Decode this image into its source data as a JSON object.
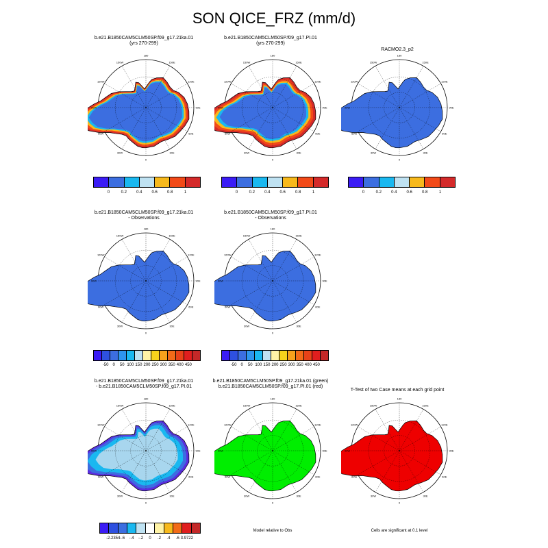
{
  "title": "SON QICE_FRZ (mm/d)",
  "lon_labels": [
    "0",
    "30E",
    "60E",
    "90E",
    "120E",
    "150E",
    "180",
    "150W",
    "120W",
    "90W",
    "60W",
    "30W"
  ],
  "panels": [
    {
      "title_line1": "b.e21.B1850CAM5CLM50SP.f09_g17.21ka.01",
      "title_line2": "(yrs 270-299)",
      "fill_style": "model_a"
    },
    {
      "title_line1": "b.e21.B1850CAM5CLM50SP.f09_g17.PI.01",
      "title_line2": "(yrs 270-299)",
      "fill_style": "model_b"
    },
    {
      "title_line1": "RACMO2.3_p2",
      "title_line2": "",
      "fill_style": "obs"
    },
    {
      "title_line1": "b.e21.B1850CAM5CLM50SP.f09_g17.21ka.01",
      "title_line2": "- Observations",
      "fill_style": "bias"
    },
    {
      "title_line1": "b.e21.B1850CAM5CLM50SP.f09_g17.PI.01",
      "title_line2": "- Observations",
      "fill_style": "bias"
    },
    {
      "title_line1": "b.e21.B1850CAM5CLM50SP.f09_g17.21ka.01",
      "title_line2": "- b.e21.B1850CAM5CLM50SP.f09_g17.PI.01",
      "fill_style": "diff"
    },
    {
      "title_line1": "b.e21.B1850CAM5CLM50SP.f09_g17.21ka.01 (green)",
      "title_line2": "b.e21.B1850CAM5CLM50SP.f09_g17.PI.01 (red)",
      "fill_style": "green"
    },
    {
      "title_line1": "T-Test of two Case means at each grid point",
      "title_line2": "",
      "fill_style": "red"
    }
  ],
  "colorbars": {
    "row1": {
      "colors": [
        "#3b1cf5",
        "#3c6ee0",
        "#1ab8f0",
        "#bfe2f2",
        "#f7b91c",
        "#f24a18",
        "#d42a2a"
      ],
      "labels": [
        "0",
        "0.2",
        "0.4",
        "0.6",
        "0.8",
        "1"
      ]
    },
    "row2": {
      "colors": [
        "#3b1cf5",
        "#2e50e0",
        "#3c6ee0",
        "#2e95ee",
        "#1ab8f0",
        "#bfe2f2",
        "#fff3a6",
        "#f7d21c",
        "#f7a11c",
        "#f26b18",
        "#e84218",
        "#e01e1e",
        "#c42828"
      ],
      "labels": [
        "-50",
        "0",
        "50",
        "100",
        "150",
        "200",
        "250",
        "300",
        "350",
        "400",
        "450"
      ]
    },
    "row3": {
      "colors": [
        "#3b1cf5",
        "#2e50e0",
        "#3c6ee0",
        "#1ab8f0",
        "#bfe2f2",
        "#ffffff",
        "#fff3a6",
        "#f7b91c",
        "#f26b18",
        "#e01e1e",
        "#c42828"
      ],
      "labels": [
        "-2.2354",
        "-.6",
        "-.4",
        "-.2",
        "0",
        ".2",
        ".4",
        ".6",
        "3.9722"
      ]
    }
  },
  "captions": {
    "model_relative": "Model relative to Obs",
    "significance": "Cells are significant at 0.1 level"
  },
  "colors": {
    "land_blue": "#3c6ee0",
    "light_blue": "#a8d6ee",
    "cyan": "#1ab8f0",
    "yellow": "#f7b91c",
    "orange": "#f24a18",
    "dark_red": "#d42a2a",
    "green": "#00ee00",
    "red": "#ee0000",
    "purple": "#5b2ee0"
  }
}
